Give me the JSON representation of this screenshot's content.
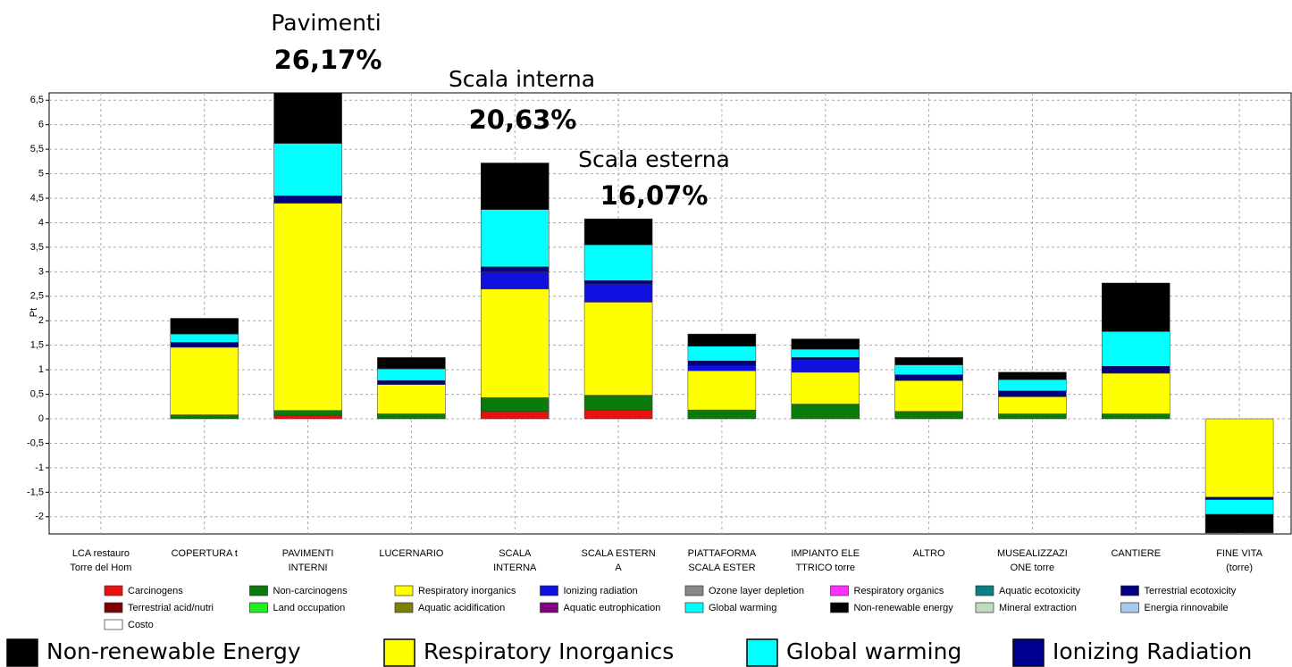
{
  "chart_data": {
    "type": "stacked_bar",
    "ylabel": "Pt",
    "categories": [
      "LCA restauro\nTorre del Hom",
      "COPERTURA t",
      "PAVIMENTI\nINTERNI",
      "LUCERNARIO",
      "SCALA\nINTERNA",
      "SCALA ESTERN\nA",
      "PIATTAFORMA\nSCALA ESTER",
      "IMPIANTO ELE\nTTRICO torre",
      "ALTRO",
      "MUSEALIZZAZI\nONE torre",
      "CANTIERE",
      "FINE VITA\n(torre)"
    ],
    "series": [
      {
        "name": "Carcinogens",
        "color": "#e81010",
        "values": [
          0,
          0,
          0.07,
          0,
          0.15,
          0.18,
          0,
          0,
          0,
          0,
          0,
          0
        ]
      },
      {
        "name": "Non-carcinogens",
        "color": "#0a7a0a",
        "values": [
          0,
          0.08,
          0.1,
          0.1,
          0.28,
          0.3,
          0.18,
          0.3,
          0.15,
          0.1,
          0.1,
          0
        ]
      },
      {
        "name": "Respiratory inorganics",
        "color": "#ffff00",
        "values": [
          0,
          1.38,
          4.23,
          0.6,
          2.22,
          1.9,
          0.8,
          0.65,
          0.63,
          0.35,
          0.83,
          -1.6
        ]
      },
      {
        "name": "Ionizing radiation",
        "color": "#1010e0",
        "values": [
          0,
          0,
          0,
          0,
          0.35,
          0.37,
          0.1,
          0.25,
          0,
          0,
          0,
          0
        ]
      },
      {
        "name": "Ozone layer depletion",
        "color": "#888888",
        "values": [
          0,
          0,
          0,
          0,
          0,
          0,
          0,
          0,
          0,
          0,
          0,
          0
        ]
      },
      {
        "name": "Respiratory organics",
        "color": "#ff30ff",
        "values": [
          0,
          0,
          0,
          0,
          0,
          0,
          0,
          0,
          0,
          0,
          0,
          0
        ]
      },
      {
        "name": "Aquatic ecotoxicity",
        "color": "#0a8080",
        "values": [
          0,
          0,
          0,
          0,
          0,
          0,
          0,
          0,
          0,
          0,
          0,
          0
        ]
      },
      {
        "name": "Terrestrial ecotoxicity",
        "color": "#000080",
        "values": [
          0,
          0.1,
          0.15,
          0.08,
          0.1,
          0.07,
          0.1,
          0.05,
          0.12,
          0.12,
          0.14,
          -0.05
        ]
      },
      {
        "name": "Terrestrial acid/nutri",
        "color": "#800000",
        "values": [
          0,
          0,
          0,
          0,
          0,
          0,
          0,
          0,
          0,
          0,
          0,
          0
        ]
      },
      {
        "name": "Land occupation",
        "color": "#20ee20",
        "values": [
          0,
          0,
          0,
          0,
          0,
          0,
          0,
          0,
          0,
          0,
          0,
          0
        ]
      },
      {
        "name": "Aquatic acidification",
        "color": "#808000",
        "values": [
          0,
          0,
          0,
          0,
          0,
          0,
          0,
          0,
          0,
          0,
          0,
          0
        ]
      },
      {
        "name": "Aquatic eutrophication",
        "color": "#800080",
        "values": [
          0,
          0,
          0,
          0,
          0,
          0,
          0,
          0,
          0,
          0,
          0,
          0
        ]
      },
      {
        "name": "Global warming",
        "color": "#00ffff",
        "values": [
          0,
          0.17,
          1.07,
          0.24,
          1.17,
          0.73,
          0.3,
          0.17,
          0.2,
          0.23,
          0.71,
          -0.3
        ]
      },
      {
        "name": "Non-renewable energy",
        "color": "#000000",
        "values": [
          0,
          0.32,
          1.03,
          0.23,
          0.95,
          0.53,
          0.25,
          0.21,
          0.15,
          0.15,
          0.99,
          -0.38
        ]
      },
      {
        "name": "Mineral extraction",
        "color": "#c0dcc0",
        "values": [
          0,
          0,
          0,
          0,
          0,
          0,
          0,
          0,
          0,
          0,
          0,
          0
        ]
      },
      {
        "name": "Energia rinnovabile",
        "color": "#a6caf0",
        "values": [
          0,
          0,
          0,
          0,
          0,
          0,
          0,
          0,
          0,
          0,
          0,
          0
        ]
      },
      {
        "name": "Costo",
        "color": "#ffffff",
        "values": [
          0,
          0,
          0,
          0,
          0,
          0,
          0,
          0,
          0,
          0,
          0,
          0
        ]
      }
    ],
    "ylim": [
      -2.35,
      6.65
    ],
    "yticks": [
      {
        "value": 6.5,
        "label": "6,5"
      },
      6,
      {
        "value": 5.5,
        "label": "5,5"
      },
      5,
      {
        "value": 4.5,
        "label": "4,5"
      },
      4,
      {
        "value": 3.5,
        "label": "3,5"
      },
      3,
      {
        "value": 2.5,
        "label": "2,5"
      },
      2,
      {
        "value": 1.5,
        "label": "1,5"
      },
      1,
      {
        "value": 0.5,
        "label": "0,5"
      },
      0,
      {
        "value": -0.5,
        "label": "-0,5"
      },
      -1,
      {
        "value": -1.5,
        "label": "-1,5"
      },
      -2
    ],
    "grid": true,
    "annotations": [
      {
        "title": "Pavimenti",
        "share": "26,17%"
      },
      {
        "title": "Scala interna",
        "share": "20,63%"
      },
      {
        "title": "Scala esterna",
        "share": "16,07%"
      }
    ],
    "highlight_legend": [
      {
        "label": "Non-renewable Energy",
        "color": "#000000"
      },
      {
        "label": "Respiratory Inorganics",
        "color": "#ffff00"
      },
      {
        "label": "Global warming",
        "color": "#00ffff"
      },
      {
        "label": "Ionizing Radiation",
        "color": "#000090"
      }
    ]
  }
}
